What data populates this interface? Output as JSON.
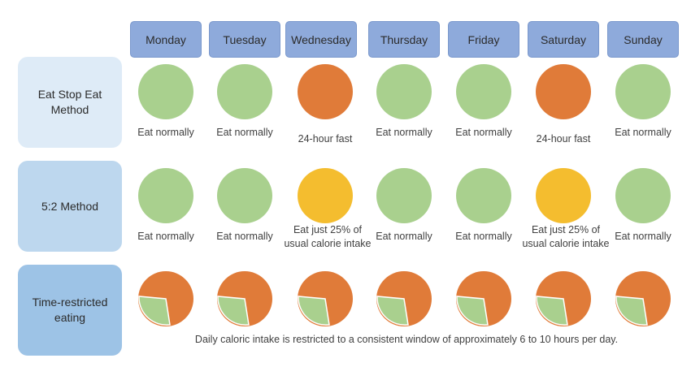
{
  "days": [
    "Monday",
    "Tuesday",
    "Wednesday",
    "Thursday",
    "Friday",
    "Saturday",
    "Sunday"
  ],
  "colors": {
    "day_header": "#8eaadb",
    "eat_normally": "#a9d08e",
    "fast": "#e07b39",
    "reduced": "#f4bd2f",
    "row1_label_bg": "#deebf7",
    "row2_label_bg": "#bdd7ee",
    "row3_label_bg": "#9dc3e6"
  },
  "rows": [
    {
      "label": "Eat Stop Eat Method",
      "circle_color": [
        "green",
        "green",
        "orange",
        "green",
        "green",
        "orange",
        "green"
      ],
      "captions": [
        "Eat normally",
        "Eat normally",
        "24-hour fast",
        "Eat normally",
        "Eat normally",
        "24-hour fast",
        "Eat normally"
      ]
    },
    {
      "label": "5:2 Method",
      "circle_color": [
        "green",
        "green",
        "yellow",
        "green",
        "green",
        "yellow",
        "green"
      ],
      "captions": [
        "Eat normally",
        "Eat normally",
        "Eat just 25% of usual calorie intake",
        "Eat normally",
        "Eat normally",
        "Eat just 25% of usual calorie intake",
        "Eat normally"
      ]
    },
    {
      "label": "Time-restricted eating",
      "pie_eating_fraction": 0.33,
      "note": "Daily caloric intake is restricted to a consistent window of approximately 6 to 10 hours per day."
    }
  ]
}
